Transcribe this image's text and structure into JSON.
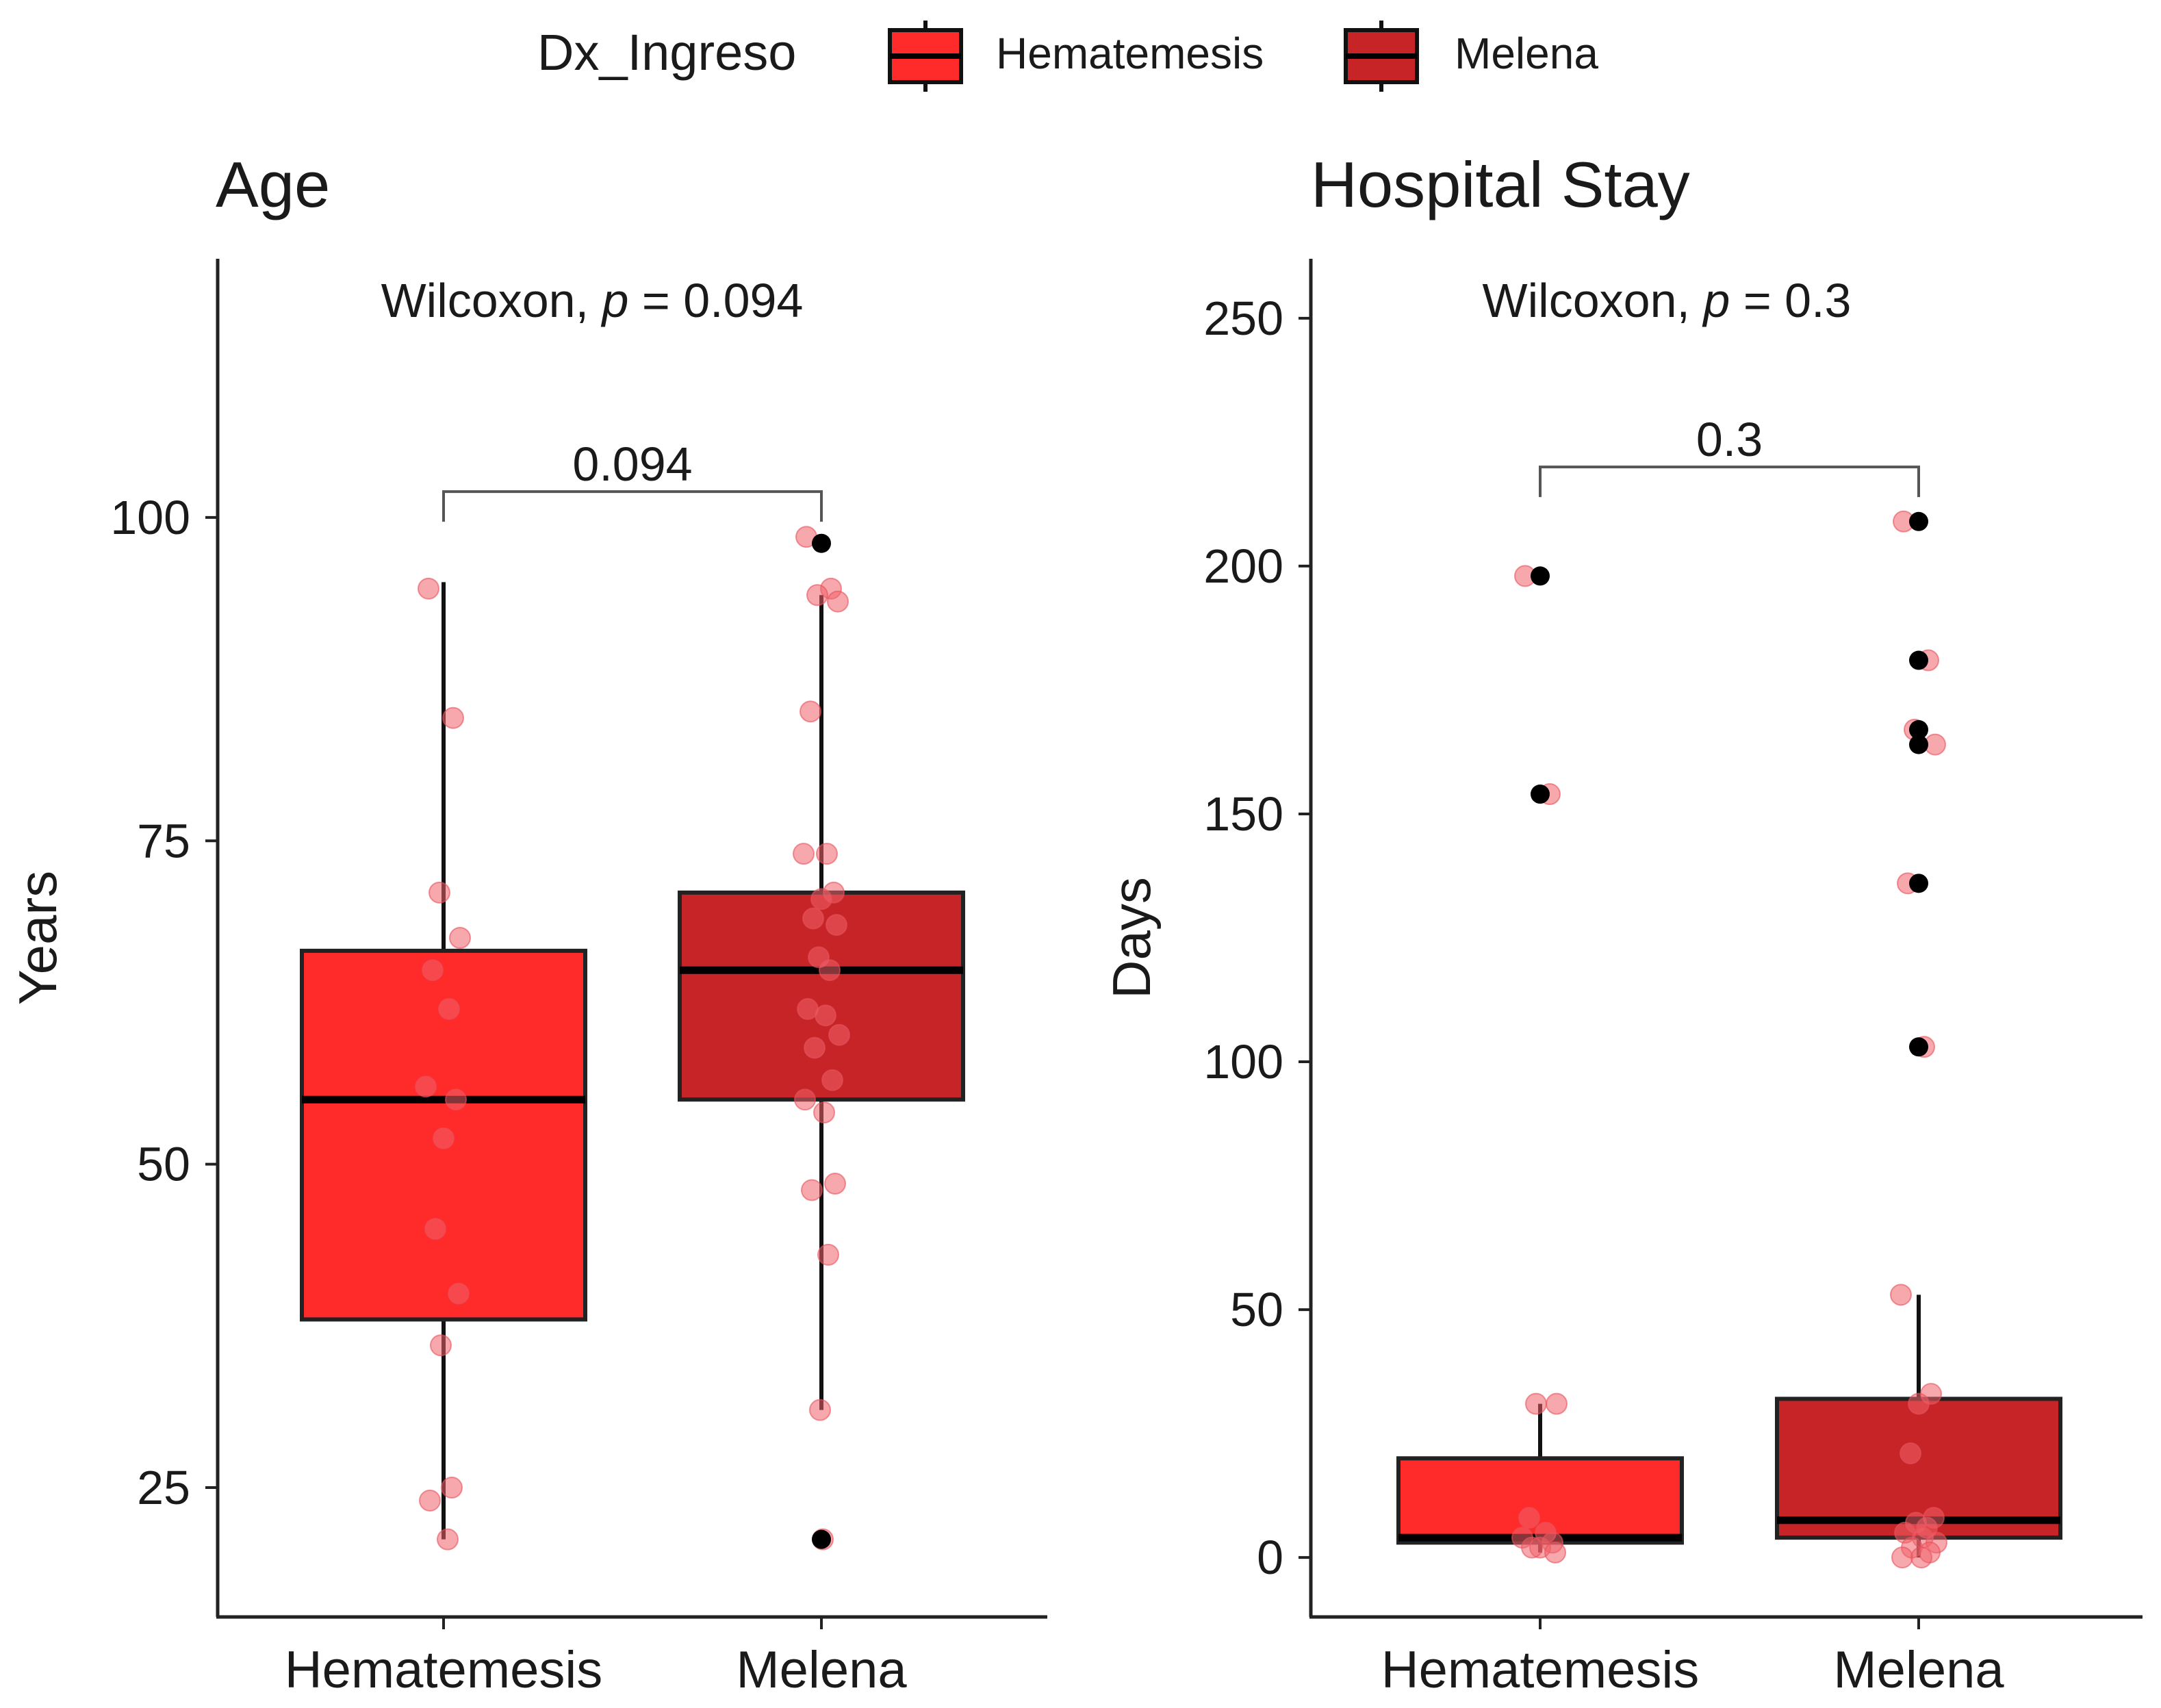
{
  "legend": {
    "title": "Dx_Ingreso",
    "entries": [
      {
        "label": "Hematemesis",
        "color": "#ff2a2a"
      },
      {
        "label": "Melena",
        "color": "#c62426"
      }
    ]
  },
  "colors": {
    "point": "#f0606a",
    "outlier": "#000000",
    "axis": "#222222"
  },
  "chart_data": [
    {
      "type": "box",
      "title": "Age",
      "ylabel": "Years",
      "xlabel": "",
      "ylim": [
        15,
        120
      ],
      "yticks": [
        25,
        50,
        75,
        100
      ],
      "categories": [
        "Hematemesis",
        "Melena"
      ],
      "test_label": "Wilcoxon,",
      "test_p_label": "p",
      "test_p_value": "= 0.094",
      "bracket": {
        "label": "0.094",
        "y": 102
      },
      "boxes": [
        {
          "category": "Hematemesis",
          "q1": 38,
          "median": 55,
          "q3": 66.5,
          "whisker_low": 21,
          "whisker_high": 95,
          "outliers": []
        },
        {
          "category": "Melena",
          "q1": 55,
          "median": 65,
          "q3": 71,
          "whisker_low": 31,
          "whisker_high": 94,
          "outliers": [
            98,
            21
          ]
        }
      ],
      "points": [
        {
          "category": "Hematemesis",
          "values": [
            94.5,
            84.5,
            71,
            67.5,
            65,
            62,
            56,
            55,
            52,
            45,
            40,
            36,
            25,
            24,
            21
          ]
        },
        {
          "category": "Melena",
          "values": [
            98.5,
            94.5,
            94,
            93.5,
            85,
            74,
            74,
            71,
            70.5,
            69,
            68.5,
            66,
            65,
            62,
            61.5,
            60,
            59,
            56.5,
            55,
            54,
            48.5,
            48,
            43,
            31,
            21
          ]
        }
      ]
    },
    {
      "type": "box",
      "title": "Hospital Stay",
      "ylabel": "Days",
      "xlabel": "",
      "ylim": [
        -12,
        262
      ],
      "yticks": [
        0,
        50,
        100,
        150,
        200,
        250
      ],
      "categories": [
        "Hematemesis",
        "Melena"
      ],
      "test_label": "Wilcoxon,",
      "test_p_label": "p",
      "test_p_value": "= 0.3",
      "bracket": {
        "label": "0.3",
        "y": 220
      },
      "boxes": [
        {
          "category": "Hematemesis",
          "q1": 3,
          "median": 4,
          "q3": 20,
          "whisker_low": 1,
          "whisker_high": 31,
          "outliers": [
            198,
            154
          ]
        },
        {
          "category": "Melena",
          "q1": 4,
          "median": 7.5,
          "q3": 32,
          "whisker_low": 0,
          "whisker_high": 53,
          "outliers": [
            209,
            181,
            167,
            164,
            136,
            103
          ]
        }
      ],
      "points": [
        {
          "category": "Hematemesis",
          "values": [
            198,
            154,
            31,
            31,
            8,
            5,
            4,
            3,
            2,
            2,
            1
          ]
        },
        {
          "category": "Melena",
          "values": [
            209,
            181,
            167,
            164,
            136,
            103,
            53,
            33,
            31,
            21,
            8,
            7,
            6,
            5,
            4,
            3,
            2,
            1,
            0,
            0
          ]
        }
      ]
    }
  ]
}
